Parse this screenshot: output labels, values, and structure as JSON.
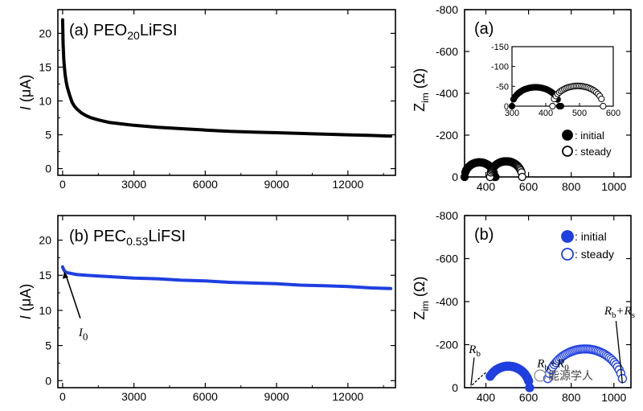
{
  "chart_data": [
    {
      "id": "a_current",
      "type": "line",
      "title": "(a) PEO20LiFSI",
      "title_parts": {
        "prefix": "(a) PEO",
        "sub": "20",
        "suffix": "LiFSI"
      },
      "ylabel": "I (μA)",
      "ylabel_parts": {
        "italic": "I",
        "rest": " (μA)"
      },
      "xlim": [
        -200,
        14000
      ],
      "ylim": [
        -1,
        23.5
      ],
      "xticks": [
        0,
        3000,
        6000,
        9000,
        12000
      ],
      "yticks": [
        0,
        5,
        10,
        15,
        20
      ],
      "color": "#000000",
      "series": [
        {
          "name": "current",
          "x": [
            0,
            20,
            50,
            100,
            150,
            200,
            300,
            400,
            500,
            600,
            800,
            1000,
            1200,
            1500,
            2000,
            2500,
            3000,
            4000,
            5000,
            6000,
            7000,
            8000,
            9000,
            10000,
            11000,
            12000,
            13000,
            13800
          ],
          "y": [
            22,
            18.5,
            16,
            14,
            12.8,
            12,
            10.8,
            9.8,
            9.2,
            8.8,
            8.2,
            7.8,
            7.5,
            7.2,
            6.8,
            6.6,
            6.4,
            6.1,
            5.9,
            5.7,
            5.5,
            5.4,
            5.3,
            5.2,
            5.1,
            5.0,
            4.9,
            4.8
          ]
        }
      ]
    },
    {
      "id": "b_current",
      "type": "line",
      "title": "(b) PEC0.53LiFSI",
      "title_parts": {
        "prefix": "(b) PEC",
        "sub": "0.53",
        "suffix": "LiFSI"
      },
      "ylabel": "I (μA)",
      "ylabel_parts": {
        "italic": "I",
        "rest": " (μA)"
      },
      "xlim": [
        -200,
        14000
      ],
      "ylim": [
        -1,
        23.5
      ],
      "xticks": [
        0,
        3000,
        6000,
        9000,
        12000
      ],
      "yticks": [
        0,
        5,
        10,
        15,
        20
      ],
      "color": "#1f3fe0",
      "annotation": {
        "text": "I",
        "sub": "0"
      },
      "series": [
        {
          "name": "current",
          "x": [
            0,
            30,
            80,
            150,
            300,
            600,
            1000,
            2000,
            3000,
            4000,
            5000,
            6000,
            7000,
            8000,
            9000,
            10000,
            11000,
            12000,
            13000,
            13800
          ],
          "y": [
            16.2,
            15.9,
            15.6,
            15.4,
            15.3,
            15.1,
            15.0,
            14.8,
            14.6,
            14.5,
            14.3,
            14.2,
            14.0,
            13.9,
            13.8,
            13.6,
            13.5,
            13.4,
            13.2,
            13.1
          ]
        }
      ]
    },
    {
      "id": "a_impedance",
      "type": "scatter",
      "title": "(a)",
      "ylabel": "Zim (Ω)",
      "ylabel_parts": {
        "main": "Z",
        "sub": "im",
        "rest": " (Ω)"
      },
      "xlim": [
        300,
        1080
      ],
      "ylim": [
        0,
        -800
      ],
      "xticks": [
        400,
        600,
        800,
        1000
      ],
      "yticks": [
        -800,
        -600,
        -400,
        -200,
        0
      ],
      "legend": [
        {
          "marker": "filled",
          "label": ": initial"
        },
        {
          "marker": "open",
          "label": ": steady"
        }
      ],
      "series": [
        {
          "name": "initial",
          "center": 370,
          "radius": 70,
          "start": 300,
          "end": 445,
          "filled": true
        },
        {
          "name": "steady",
          "center": 495,
          "radius": 75,
          "start": 420,
          "end": 570,
          "filled": false
        }
      ],
      "inset": {
        "xlim": [
          300,
          600
        ],
        "ylim": [
          0,
          -150
        ],
        "xticks": [
          300,
          400,
          500,
          600
        ],
        "yticks": [
          -150,
          -100,
          -50,
          0
        ]
      }
    },
    {
      "id": "b_impedance",
      "type": "scatter",
      "title": "(b)",
      "ylabel": "Zim (Ω)",
      "ylabel_parts": {
        "main": "Z",
        "sub": "im",
        "rest": " (Ω)"
      },
      "xlim": [
        300,
        1080
      ],
      "ylim": [
        0,
        -800
      ],
      "xticks": [
        400,
        600,
        800,
        1000
      ],
      "yticks": [
        -800,
        -600,
        -400,
        -200,
        0
      ],
      "legend": [
        {
          "marker": "filled",
          "label": ": initial"
        },
        {
          "marker": "open",
          "label": ": steady"
        }
      ],
      "annotations": [
        {
          "main": "R",
          "sub": "b",
          "rest": ""
        },
        {
          "main": "R",
          "sub": "b",
          "rest": "+R",
          "sub2": "0"
        },
        {
          "main": "R",
          "sub": "b",
          "rest": "+R",
          "sub2": "s"
        }
      ],
      "series": [
        {
          "name": "initial",
          "center": 505,
          "radius": 100,
          "start": 420,
          "end": 605,
          "filled": true
        },
        {
          "name": "steady",
          "center": 865,
          "radius": 180,
          "start": 690,
          "end": 1040,
          "filled": false
        }
      ],
      "watermark": "能源学人"
    }
  ]
}
